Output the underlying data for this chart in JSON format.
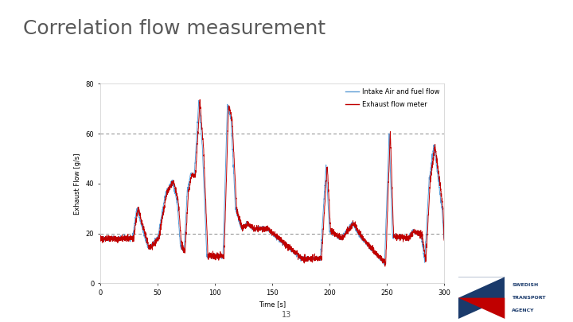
{
  "title": "Correlation flow measurement",
  "title_fontsize": 18,
  "title_color": "#595959",
  "xlabel": "Time [s]",
  "ylabel": "Exhaust Flow [g/s]",
  "xlim": [
    0,
    300
  ],
  "ylim": [
    0,
    80
  ],
  "yticks": [
    0,
    20,
    40,
    60,
    80
  ],
  "xticks": [
    0,
    50,
    100,
    150,
    200,
    250,
    300
  ],
  "hlines": [
    20,
    60
  ],
  "hline_color": "#888888",
  "hline_style": "--",
  "blue_color": "#5b9bd5",
  "red_color": "#c00000",
  "legend_labels": [
    "Intake Air and fuel flow",
    "Exhaust flow meter"
  ],
  "slide_number": "13",
  "background_color": "#ffffff",
  "axis_bg_color": "#ffffff",
  "label_fontsize": 6,
  "tick_fontsize": 6,
  "legend_fontsize": 6
}
